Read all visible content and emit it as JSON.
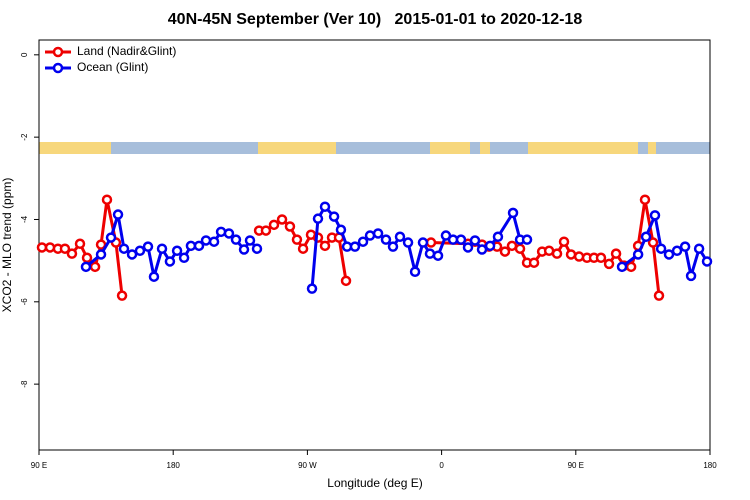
{
  "chart_data": {
    "type": "line",
    "title": "40N-45N September (Ver 10)   2015-01-01 to 2020-12-18",
    "x_label": "Longitude (deg E)",
    "y_label": "XCO2 - MLO trend (ppm)",
    "xlim": [
      90,
      540
    ],
    "ylim": [
      -9.6,
      0.36
    ],
    "xticks": [
      {
        "value": 90,
        "label": "90 E"
      },
      180,
      {
        "value": 270,
        "label": "90 W"
      },
      {
        "value": 360,
        "label": "0"
      },
      {
        "value": 450,
        "label": "90 E"
      },
      {
        "value": 540,
        "label": "180"
      }
    ],
    "yticks": [
      0,
      -2,
      -4,
      -6,
      -8
    ],
    "legend": "top-left",
    "series": [
      {
        "name": "Land (Nadir&Glint)",
        "color": "#ee0000",
        "x": [
          92.0,
          97.4,
          102.7,
          107.4,
          112.1,
          117.5,
          122.2,
          127.6,
          131.6,
          135.6,
          141.6,
          145.7,
          null,
          237.6,
          242.2,
          247.6,
          253.0,
          258.3,
          263.0,
          267.1,
          272.4,
          277.1,
          281.8,
          286.5,
          291.2,
          295.9,
          null,
          352.9,
          377.7,
          382.4,
          387.1,
          391.8,
          397.2,
          402.5,
          407.2,
          412.6,
          417.3,
          422.0,
          427.4,
          432.1,
          437.4,
          442.1,
          446.8,
          452.2,
          457.5,
          462.2,
          466.9,
          472.3,
          477.0,
          482.4,
          487.1,
          491.8,
          496.4,
          501.8,
          505.8
        ],
        "values": [
          -4.68,
          -4.68,
          -4.71,
          -4.71,
          -4.83,
          -4.59,
          -4.93,
          -5.15,
          -4.61,
          -3.52,
          -4.56,
          -5.85,
          null,
          -4.27,
          -4.27,
          -4.13,
          -4.0,
          -4.17,
          -4.49,
          -4.71,
          -4.37,
          -4.44,
          -4.64,
          -4.44,
          -4.44,
          -5.49,
          null,
          -4.56,
          -4.59,
          -4.54,
          -4.61,
          -4.66,
          -4.66,
          -4.78,
          -4.64,
          -4.71,
          -5.05,
          -5.05,
          -4.78,
          -4.76,
          -4.83,
          -4.54,
          -4.85,
          -4.9,
          -4.93,
          -4.93,
          -4.93,
          -5.08,
          -4.83,
          -5.12,
          -5.15,
          -4.64,
          -3.52,
          -4.56,
          -5.85
        ]
      },
      {
        "name": "Ocean (Glint)",
        "color": "#0000ee",
        "x": [
          121.5,
          131.6,
          138.3,
          143.0,
          147.0,
          152.4,
          157.7,
          163.1,
          167.1,
          172.5,
          177.8,
          182.6,
          187.3,
          191.9,
          197.3,
          202.0,
          207.4,
          212.1,
          217.4,
          222.1,
          227.5,
          231.5,
          236.2,
          null,
          273.1,
          277.1,
          281.8,
          287.9,
          292.5,
          296.6,
          301.9,
          307.3,
          312.0,
          317.4,
          322.7,
          327.4,
          332.1,
          337.5,
          342.2,
          347.5,
          352.2,
          357.6,
          362.9,
          367.7,
          373.0,
          377.7,
          382.4,
          387.1,
          392.5,
          397.8,
          407.9,
          412.6,
          417.3,
          null,
          481.0,
          491.8,
          497.1,
          503.1,
          507.2,
          512.5,
          517.9,
          523.3,
          527.3,
          532.7,
          538.0
        ],
        "values": [
          -5.15,
          -4.85,
          -4.44,
          -3.88,
          -4.71,
          -4.85,
          -4.76,
          -4.66,
          -5.39,
          -4.71,
          -5.02,
          -4.76,
          -4.93,
          -4.64,
          -4.64,
          -4.51,
          -4.54,
          -4.3,
          -4.34,
          -4.49,
          -4.73,
          -4.51,
          -4.71,
          null,
          -5.68,
          -3.98,
          -3.69,
          -3.93,
          -4.25,
          -4.66,
          -4.66,
          -4.54,
          -4.39,
          -4.34,
          -4.49,
          -4.66,
          -4.42,
          -4.56,
          -5.27,
          -4.56,
          -4.83,
          -4.88,
          -4.39,
          -4.49,
          -4.49,
          -4.68,
          -4.51,
          -4.73,
          -4.64,
          -4.42,
          -3.84,
          -4.49,
          -4.49,
          null,
          -5.15,
          -4.85,
          -4.42,
          -3.9,
          -4.71,
          -4.85,
          -4.76,
          -4.66,
          -5.37,
          -4.71,
          -5.02
        ]
      }
    ]
  }
}
